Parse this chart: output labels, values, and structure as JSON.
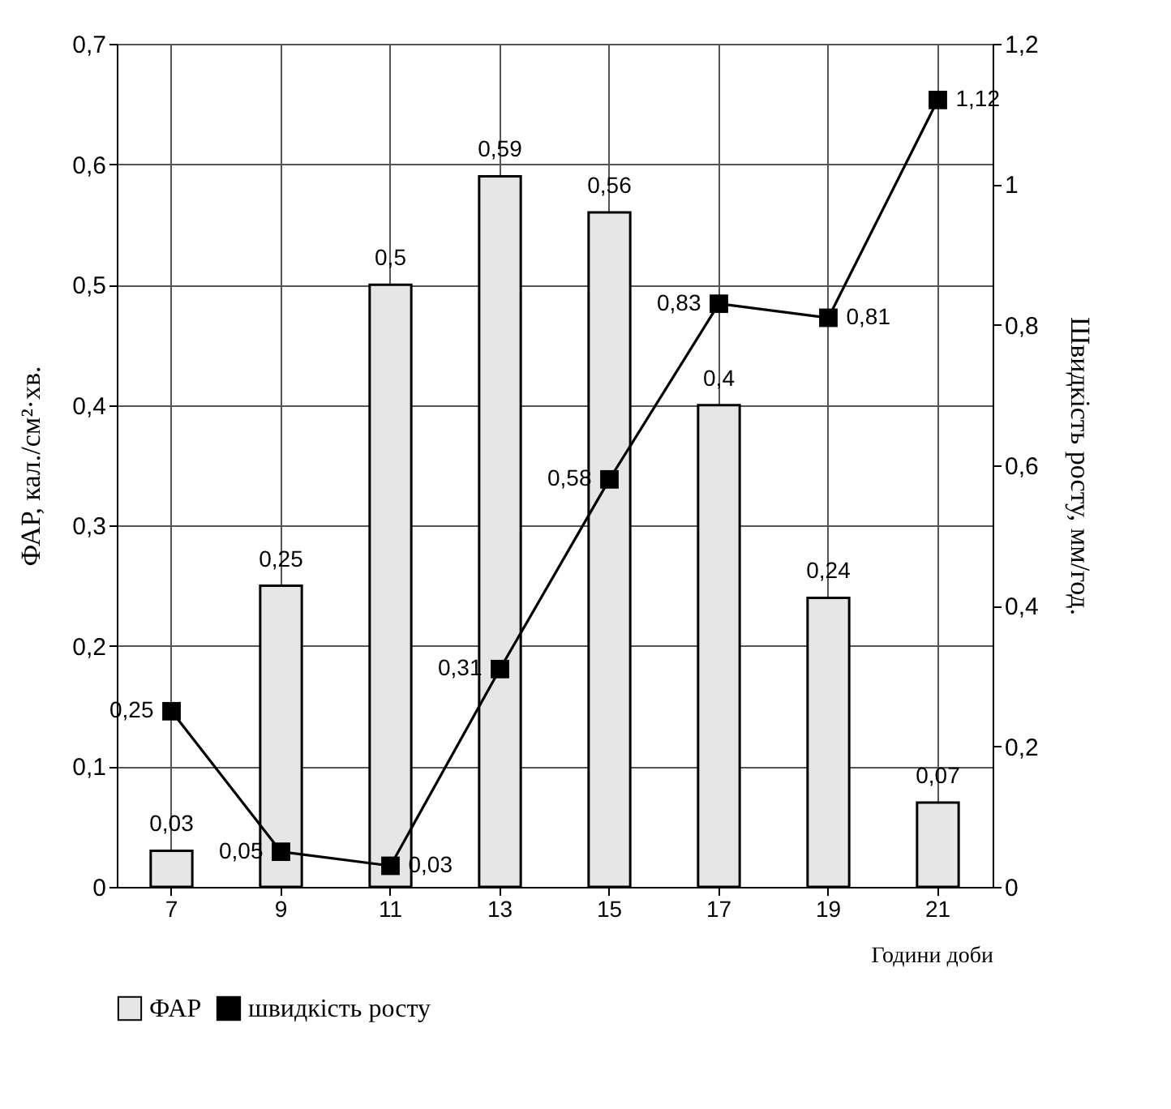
{
  "chart_data": {
    "type": "bar",
    "xlabel": "Години доби",
    "ylabel": "ФАР, кал./см²·хв.",
    "y2label": "Швидкість росту, мм/год.",
    "categories": [
      "7",
      "9",
      "11",
      "13",
      "15",
      "17",
      "19",
      "21"
    ],
    "series": [
      {
        "name": "ФАР",
        "color": "#e6e6e6",
        "values": [
          0.03,
          0.25,
          0.5,
          0.59,
          0.56,
          0.4,
          0.24,
          0.07
        ],
        "value_labels": [
          "0,03",
          "0,25",
          "0,5",
          "0,59",
          "0,56",
          "0,4",
          "0,24",
          "0,07"
        ]
      },
      {
        "name": "швидкість росту",
        "type": "line",
        "axis": "y2",
        "color": "#000000",
        "values": [
          0.25,
          0.05,
          0.03,
          0.31,
          0.58,
          0.83,
          0.81,
          1.12
        ],
        "value_labels": [
          "0,25",
          "0,05",
          "0,03",
          "0,31",
          "0,58",
          "0,83",
          "0,81",
          "1,12"
        ]
      }
    ],
    "ylim": [
      0,
      0.7
    ],
    "yticks": [
      {
        "value": 0,
        "label": "0"
      },
      {
        "value": 0.1,
        "label": "0,1"
      },
      {
        "value": 0.2,
        "label": "0,2"
      },
      {
        "value": 0.3,
        "label": "0,3"
      },
      {
        "value": 0.4,
        "label": "0,4"
      },
      {
        "value": 0.5,
        "label": "0,5"
      },
      {
        "value": 0.6,
        "label": "0,6"
      },
      {
        "value": 0.7,
        "label": "0,7"
      }
    ],
    "y2lim": [
      0,
      1.2
    ],
    "y2ticks": [
      {
        "value": 0,
        "label": "0"
      },
      {
        "value": 0.2,
        "label": "0,2"
      },
      {
        "value": 0.4,
        "label": "0,4"
      },
      {
        "value": 0.6,
        "label": "0,6"
      },
      {
        "value": 0.8,
        "label": "0,8"
      },
      {
        "value": 1,
        "label": "1"
      },
      {
        "value": 1.2,
        "label": "1,2"
      }
    ],
    "grid": true,
    "legend": "bottom",
    "marker": "square",
    "line_style": "solid"
  }
}
